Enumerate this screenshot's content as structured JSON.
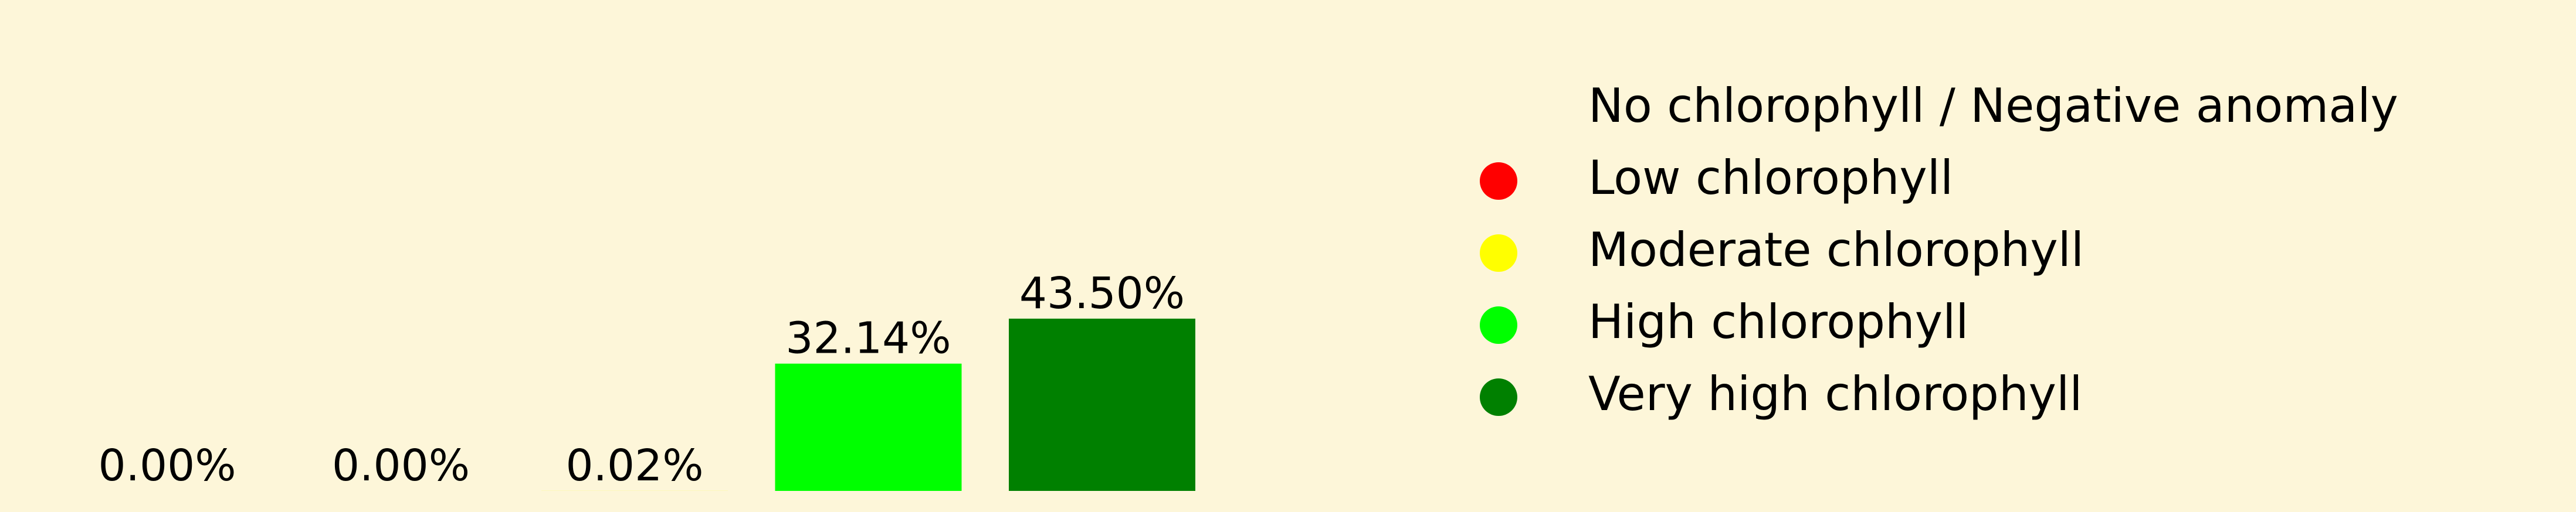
{
  "chart_data": {
    "type": "bar",
    "categories": [
      "No chlorophyll / Negative anomaly",
      "Low chlorophyll",
      "Moderate chlorophyll",
      "High chlorophyll",
      "Very high chlorophyll"
    ],
    "values": [
      0.0,
      0.0,
      0.02,
      32.14,
      43.5
    ],
    "data_labels": [
      "0.00%",
      "0.00%",
      "0.02%",
      "32.14%",
      "43.50%"
    ],
    "colors": [
      "#fdf6d9",
      "#ff0000",
      "#ffff00",
      "#00ff00",
      "#008000"
    ],
    "ylim": [
      0,
      100
    ],
    "grid": false,
    "legend": {
      "placement": "right",
      "entries": [
        {
          "label": "No chlorophyll / Negative anomaly",
          "color": "#fdf6d9"
        },
        {
          "label": "Low chlorophyll",
          "color": "#ff0000"
        },
        {
          "label": "Moderate chlorophyll",
          "color": "#ffff00"
        },
        {
          "label": "High chlorophyll",
          "color": "#00ff00"
        },
        {
          "label": "Very high chlorophyll",
          "color": "#008000"
        }
      ]
    }
  }
}
